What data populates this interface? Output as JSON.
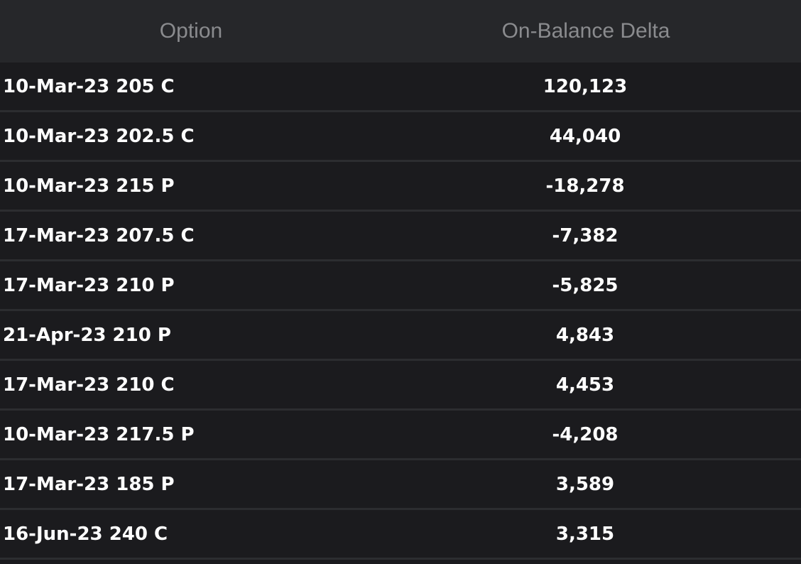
{
  "table": {
    "headers": {
      "option": "Option",
      "delta": "On-Balance Delta"
    },
    "rows": [
      {
        "option": "10-Mar-23 205 C",
        "delta": "120,123"
      },
      {
        "option": "10-Mar-23 202.5 C",
        "delta": "44,040"
      },
      {
        "option": "10-Mar-23 215 P",
        "delta": "-18,278"
      },
      {
        "option": "17-Mar-23 207.5 C",
        "delta": "-7,382"
      },
      {
        "option": "17-Mar-23 210 P",
        "delta": "-5,825"
      },
      {
        "option": "21-Apr-23 210 P",
        "delta": "4,843"
      },
      {
        "option": "17-Mar-23 210 C",
        "delta": "4,453"
      },
      {
        "option": "10-Mar-23 217.5 P",
        "delta": "-4,208"
      },
      {
        "option": "17-Mar-23 185 P",
        "delta": "3,589"
      },
      {
        "option": "16-Jun-23 240 C",
        "delta": "3,315"
      }
    ]
  },
  "colors": {
    "background": "#1b1b1e",
    "header_background": "#26272a",
    "header_text": "#8a8b8e",
    "row_text": "#ffffff",
    "row_divider": "#2c2d30"
  }
}
